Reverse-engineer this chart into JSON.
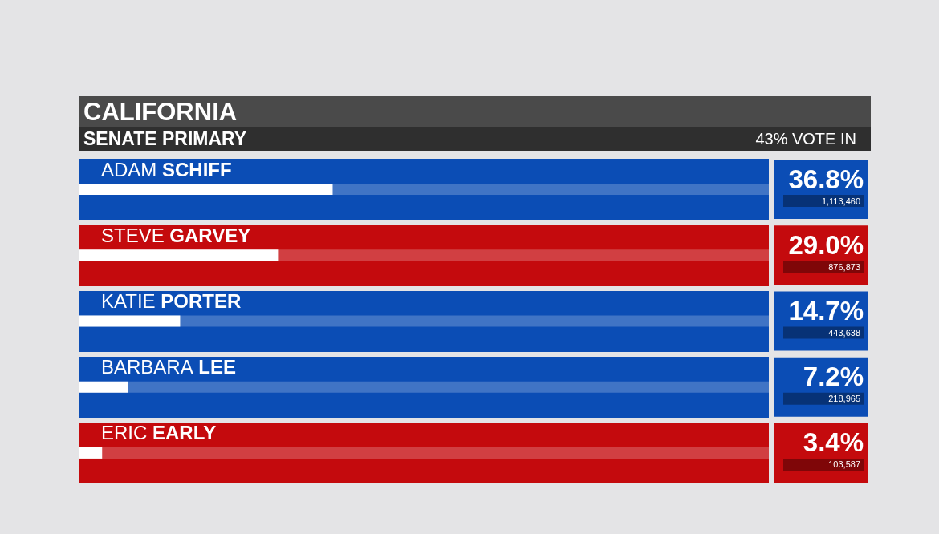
{
  "chart_data": {
    "type": "bar",
    "orientation": "horizontal",
    "title": "CALIFORNIA",
    "subtitle": "SENATE PRIMARY",
    "categories": [
      "ADAM SCHIFF",
      "STEVE GARVEY",
      "KATIE PORTER",
      "BARBARA LEE",
      "ERIC EARLY"
    ],
    "values": [
      36.8,
      29.0,
      14.7,
      7.2,
      3.4
    ],
    "value_labels": [
      "36.8%",
      "29.0%",
      "14.7%",
      "7.2%",
      "3.4%"
    ],
    "color": "#ffffff",
    "xlim": [
      0,
      100
    ],
    "tick_labels": false,
    "bands": [
      {
        "axis": "y",
        "from": "ADAM SCHIFF",
        "to": "ADAM SCHIFF",
        "color": "#0b4db5"
      },
      {
        "axis": "y",
        "from": "STEVE GARVEY",
        "to": "STEVE GARVEY",
        "color": "#c40a0d"
      },
      {
        "axis": "y",
        "from": "KATIE PORTER",
        "to": "KATIE PORTER",
        "color": "#0b4db5"
      },
      {
        "axis": "y",
        "from": "BARBARA LEE",
        "to": "BARBARA LEE",
        "color": "#0b4db5"
      },
      {
        "axis": "y",
        "from": "ERIC EARLY",
        "to": "ERIC EARLY",
        "color": "#c40a0d"
      }
    ],
    "annotations": [
      "43% VOTE IN",
      "1,113,460",
      "876,873",
      "443,638",
      "218,965",
      "103,587"
    ]
  }
}
